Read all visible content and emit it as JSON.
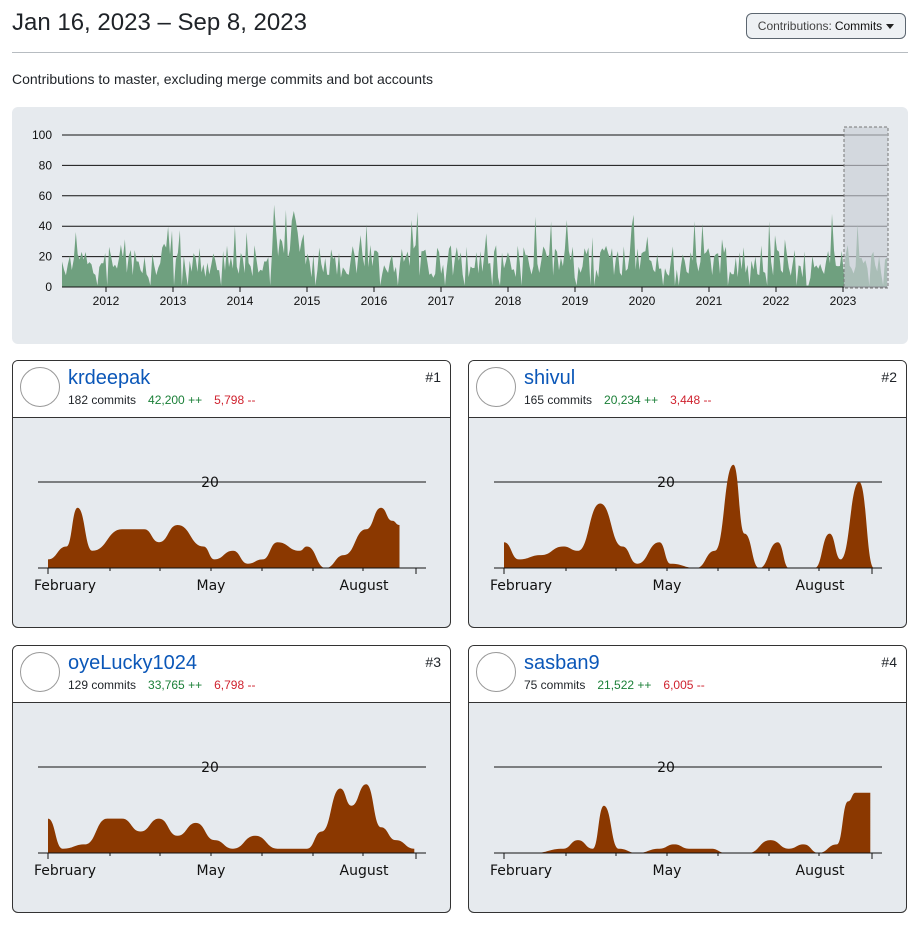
{
  "header": {
    "date_range": "Jan 16, 2023 – Sep 8, 2023",
    "select_prefix": "Contributions:",
    "select_value": "Commits",
    "subtitle": "Contributions to master, excluding merge commits and bot accounts"
  },
  "colors": {
    "overview_fill": "#6fa07f",
    "contributor_fill": "#8b3800",
    "panel_bg": "#e6eaee",
    "link": "#0b57b8",
    "additions": "#1a7f37",
    "deletions": "#cf222e"
  },
  "overview": {
    "y_ticks": [
      "100",
      "80",
      "60",
      "40",
      "20",
      "0"
    ],
    "x_ticks": [
      "2012",
      "2013",
      "2014",
      "2015",
      "2016",
      "2017",
      "2018",
      "2019",
      "2020",
      "2021",
      "2022",
      "2023"
    ],
    "selected_range": "Jan 16, 2023 – Sep 8, 2023"
  },
  "contributors": [
    {
      "rank": "#1",
      "username": "krdeepak",
      "commits": "182 commits",
      "additions": "42,200 ++",
      "deletions": "5,798 --",
      "avatar_icon": "person-photo-avatar-icon",
      "y_tick": "20",
      "months": [
        "February",
        "May",
        "August"
      ]
    },
    {
      "rank": "#2",
      "username": "shivul",
      "commits": "165 commits",
      "additions": "20,234 ++",
      "deletions": "3,448 --",
      "avatar_icon": "panda-avatar-icon",
      "y_tick": "20",
      "months": [
        "February",
        "May",
        "August"
      ]
    },
    {
      "rank": "#3",
      "username": "oyeLucky1024",
      "commits": "129 commits",
      "additions": "33,765 ++",
      "deletions": "6,798 --",
      "avatar_icon": "yin-yang-avatar-icon",
      "y_tick": "20",
      "months": [
        "February",
        "May",
        "August"
      ]
    },
    {
      "rank": "#4",
      "username": "sasban9",
      "commits": "75 commits",
      "additions": "21,522 ++",
      "deletions": "6,005 --",
      "avatar_icon": "person-outdoor-avatar-icon",
      "y_tick": "20",
      "months": [
        "February",
        "May",
        "August"
      ]
    }
  ]
}
